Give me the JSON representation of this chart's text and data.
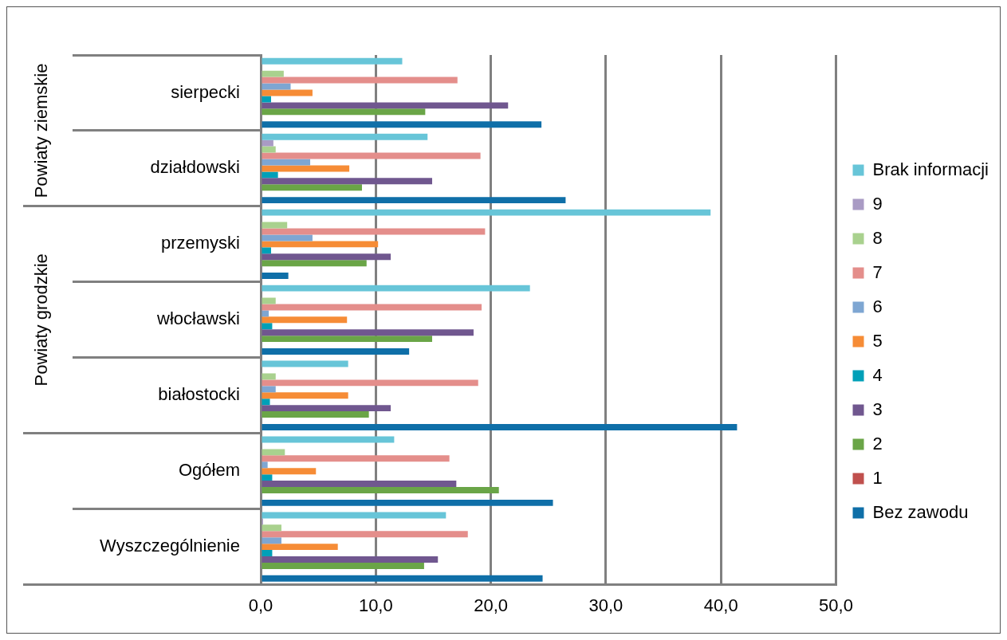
{
  "chart_data": {
    "type": "bar",
    "orientation": "horizontal",
    "categories": [
      "sierpecki",
      "działdowski",
      "przemyski",
      "włocławski",
      "białostocki",
      "Ogółem",
      "Wyszczególnienie"
    ],
    "series": [
      {
        "name": "Brak informacji",
        "color": "#67c5d8",
        "values": [
          12.3,
          14.5,
          39.1,
          23.4,
          7.6,
          11.6,
          16.1
        ]
      },
      {
        "name": "9",
        "color": "#a99bc4",
        "values": [
          null,
          1.1,
          null,
          null,
          null,
          null,
          0.2
        ]
      },
      {
        "name": "8",
        "color": "#a9d18e",
        "values": [
          2.0,
          1.3,
          2.3,
          1.3,
          1.3,
          2.1,
          1.8
        ]
      },
      {
        "name": "7",
        "color": "#e48e8b",
        "values": [
          17.1,
          19.1,
          19.5,
          19.2,
          18.9,
          16.4,
          18.0
        ]
      },
      {
        "name": "6",
        "color": "#7ea6d2",
        "values": [
          2.6,
          4.3,
          4.5,
          0.7,
          1.3,
          0.6,
          1.8
        ]
      },
      {
        "name": "5",
        "color": "#f68c36",
        "values": [
          4.5,
          7.7,
          10.2,
          7.5,
          7.6,
          4.8,
          6.7
        ]
      },
      {
        "name": "4",
        "color": "#00a0b8",
        "values": [
          0.9,
          1.5,
          0.9,
          1.0,
          0.8,
          1.0,
          1.0
        ]
      },
      {
        "name": "3",
        "color": "#70578f",
        "values": [
          21.5,
          14.9,
          11.3,
          18.5,
          11.3,
          17.0,
          15.4
        ]
      },
      {
        "name": "2",
        "color": "#6aa547",
        "values": [
          14.3,
          8.8,
          9.2,
          14.9,
          9.4,
          20.7,
          14.2
        ]
      },
      {
        "name": "1",
        "color": "#c0504d",
        "values": [
          null,
          null,
          null,
          null,
          null,
          null,
          null
        ]
      },
      {
        "name": "Bez zawodu",
        "color": "#0f6fa8",
        "values": [
          24.4,
          26.5,
          2.4,
          12.9,
          41.4,
          25.4,
          24.5
        ]
      }
    ],
    "xlim": [
      0,
      50
    ],
    "xticks": [
      {
        "value": 0,
        "label": "0,0"
      },
      {
        "value": 10,
        "label": "10,0"
      },
      {
        "value": 20,
        "label": "20,0"
      },
      {
        "value": 30,
        "label": "30,0"
      },
      {
        "value": 40,
        "label": "40,0"
      },
      {
        "value": 50,
        "label": "50,0"
      }
    ],
    "grid": "x",
    "legend": "right",
    "annotations": [
      "Powiaty ziemskie",
      "Powiaty grodzkie"
    ]
  }
}
